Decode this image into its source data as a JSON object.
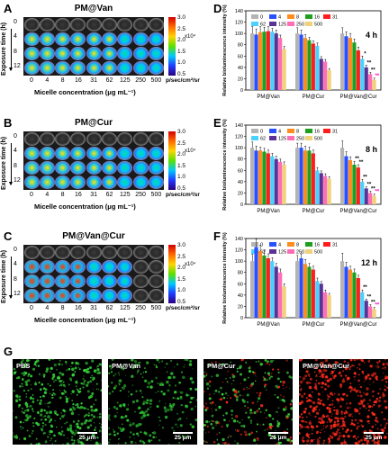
{
  "panels_left": [
    {
      "letter": "A",
      "title": "PM@Van"
    },
    {
      "letter": "B",
      "title": "PM@Cur"
    },
    {
      "letter": "C",
      "title": "PM@Van@Cur"
    }
  ],
  "panels_right": [
    "D",
    "E",
    "F"
  ],
  "panel_g": "G",
  "row_times": [
    "0",
    "4",
    "8",
    "12"
  ],
  "exposure_label": "Exposure time (h)",
  "micelle_concentrations": [
    "0",
    "4",
    "8",
    "16",
    "31",
    "62",
    "125",
    "250",
    "500"
  ],
  "micelle_xlabel": "Micelle concentration (μg mL⁻¹)",
  "colorbar": {
    "ticks": [
      "3.0",
      "2.5",
      "2.0",
      "1.5",
      "1.0",
      "0.5"
    ],
    "multiplier": "x10⁴",
    "unit": "p/sec/cm²/sr"
  },
  "colors": {
    "0": "#b4b4b4",
    "4": "#2850ff",
    "8": "#ff8c1e",
    "16": "#1ea01e",
    "31": "#ff1e1e",
    "62": "#4ad2ff",
    "125": "#5a3296",
    "250": "#ff6eb4",
    "500": "#f0d278"
  },
  "chart_data": [
    {
      "type": "bar",
      "title": "4 h",
      "ylabel": "Relative bioluminescence intensity (%)",
      "ylim": [
        0,
        140
      ],
      "yticks": [
        0,
        20,
        40,
        60,
        80,
        100,
        120,
        140
      ],
      "categories": [
        "PM@Van",
        "PM@Cur",
        "PM@Van@Cur"
      ],
      "series": [
        {
          "name": "0",
          "values": [
            100,
            100,
            100
          ],
          "err": [
            12,
            10,
            10
          ]
        },
        {
          "name": "4",
          "values": [
            98,
            98,
            95
          ],
          "err": [
            10,
            8,
            8
          ]
        },
        {
          "name": "8",
          "values": [
            102,
            92,
            92
          ],
          "err": [
            10,
            6,
            8
          ]
        },
        {
          "name": "16",
          "values": [
            103,
            88,
            84
          ],
          "err": [
            8,
            5,
            6
          ]
        },
        {
          "name": "31",
          "values": [
            104,
            82,
            70
          ],
          "err": [
            8,
            5,
            6
          ]
        },
        {
          "name": "62",
          "values": [
            103,
            78,
            55
          ],
          "err": [
            6,
            5,
            5
          ]
        },
        {
          "name": "125",
          "values": [
            100,
            55,
            40
          ],
          "err": [
            6,
            4,
            4
          ]
        },
        {
          "name": "250",
          "values": [
            92,
            50,
            28
          ],
          "err": [
            5,
            4,
            3
          ]
        },
        {
          "name": "500",
          "values": [
            72,
            35,
            18
          ],
          "err": [
            5,
            3,
            3
          ]
        }
      ],
      "annotations": [
        "*",
        "**",
        "**",
        "**"
      ]
    },
    {
      "type": "bar",
      "title": "8 h",
      "ylabel": "Relative bioluminescence intensity (%)",
      "ylim": [
        0,
        140
      ],
      "yticks": [
        0,
        20,
        40,
        60,
        80,
        100,
        120,
        140
      ],
      "categories": [
        "PM@Van",
        "PM@Cur",
        "PM@Van@Cur"
      ],
      "series": [
        {
          "name": "0",
          "values": [
            100,
            100,
            100
          ],
          "err": [
            10,
            8,
            12
          ]
        },
        {
          "name": "4",
          "values": [
            95,
            100,
            85
          ],
          "err": [
            8,
            8,
            8
          ]
        },
        {
          "name": "8",
          "values": [
            95,
            95,
            78
          ],
          "err": [
            6,
            8,
            6
          ]
        },
        {
          "name": "16",
          "values": [
            93,
            95,
            70
          ],
          "err": [
            6,
            6,
            6
          ]
        },
        {
          "name": "31",
          "values": [
            90,
            90,
            65
          ],
          "err": [
            6,
            6,
            5
          ]
        },
        {
          "name": "62",
          "values": [
            85,
            60,
            40
          ],
          "err": [
            5,
            5,
            4
          ]
        },
        {
          "name": "125",
          "values": [
            80,
            55,
            28
          ],
          "err": [
            5,
            4,
            3
          ]
        },
        {
          "name": "250",
          "values": [
            75,
            50,
            20
          ],
          "err": [
            5,
            4,
            3
          ]
        },
        {
          "name": "500",
          "values": [
            70,
            45,
            15
          ],
          "err": [
            5,
            4,
            3
          ]
        }
      ],
      "annotations": [
        "**",
        "**",
        "**",
        "**",
        "**",
        "**"
      ]
    },
    {
      "type": "bar",
      "title": "12 h",
      "ylabel": "Relative bioluminescence intensity (%)",
      "ylim": [
        0,
        140
      ],
      "yticks": [
        0,
        20,
        40,
        60,
        80,
        100,
        120,
        140
      ],
      "categories": [
        "PM@Van",
        "PM@Cur",
        "PM@Van@Cur"
      ],
      "series": [
        {
          "name": "0",
          "values": [
            100,
            100,
            100
          ],
          "err": [
            12,
            10,
            14
          ]
        },
        {
          "name": "4",
          "values": [
            125,
            105,
            90
          ],
          "err": [
            14,
            8,
            8
          ]
        },
        {
          "name": "8",
          "values": [
            118,
            95,
            85
          ],
          "err": [
            10,
            8,
            6
          ]
        },
        {
          "name": "16",
          "values": [
            110,
            90,
            80
          ],
          "err": [
            10,
            6,
            6
          ]
        },
        {
          "name": "31",
          "values": [
            105,
            85,
            70
          ],
          "err": [
            8,
            6,
            5
          ]
        },
        {
          "name": "62",
          "values": [
            100,
            65,
            45
          ],
          "err": [
            6,
            5,
            4
          ]
        },
        {
          "name": "125",
          "values": [
            90,
            60,
            30
          ],
          "err": [
            6,
            4,
            3
          ]
        },
        {
          "name": "250",
          "values": [
            80,
            45,
            20
          ],
          "err": [
            6,
            4,
            3
          ]
        },
        {
          "name": "500",
          "values": [
            55,
            40,
            15
          ],
          "err": [
            5,
            3,
            3
          ]
        }
      ],
      "annotations": [
        "**",
        "**",
        "**",
        "**"
      ]
    }
  ],
  "micrographs": [
    {
      "label": "PBS",
      "density": "high-green",
      "scale": "25 μm"
    },
    {
      "label": "PM@Van",
      "density": "medium-green",
      "scale": "25 μm"
    },
    {
      "label": "PM@Cur",
      "density": "mixed",
      "scale": "25 μm"
    },
    {
      "label": "PM@Van@Cur",
      "density": "high-red",
      "scale": "25 μm"
    }
  ]
}
